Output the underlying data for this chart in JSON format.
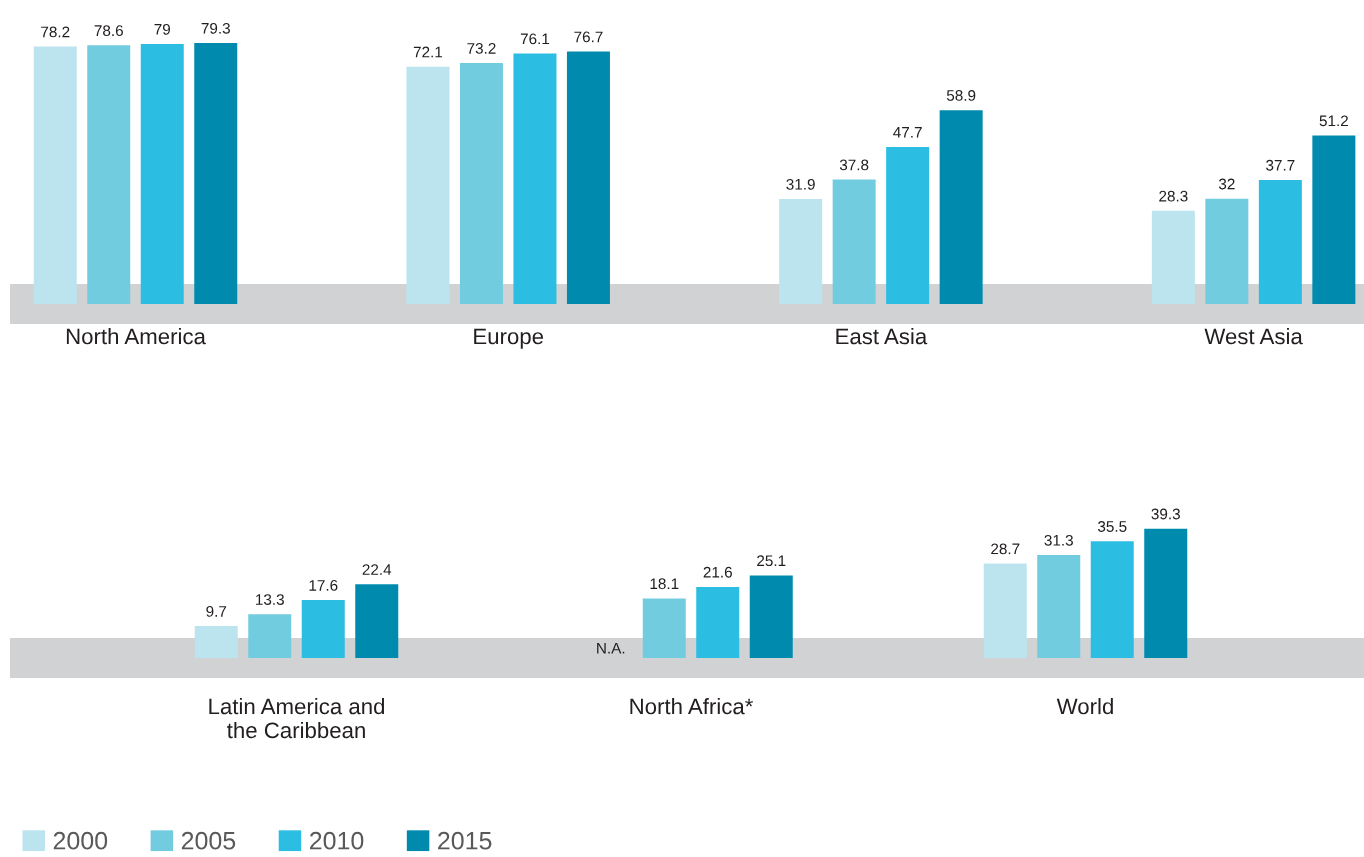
{
  "chart_data": [
    {
      "type": "bar",
      "categories": [
        "North America",
        "Europe",
        "East Asia",
        "West Asia"
      ],
      "series": [
        {
          "color": "#bbe4ee",
          "values": [
            78.2,
            72.1,
            31.9,
            28.3
          ]
        },
        {
          "color": "#72cce0",
          "values": [
            78.6,
            73.2,
            37.8,
            32
          ]
        },
        {
          "color": "#2bbde2",
          "values": [
            79,
            76.1,
            47.7,
            37.7
          ]
        },
        {
          "color": "#008bae",
          "values": [
            79.3,
            76.7,
            58.9,
            51.2
          ]
        }
      ],
      "data_labels": true,
      "tick_labels": "x"
    },
    {
      "type": "bar",
      "categories": [
        "Latin America and the Caribbean",
        "North Africa*",
        "World"
      ],
      "series": [
        {
          "name": "2000",
          "color": "#bbe4ee",
          "values": [
            9.7,
            null,
            28.7
          ],
          "value_labels": [
            "9.7",
            "N.A.",
            "28.7"
          ]
        },
        {
          "name": "2005",
          "color": "#72cce0",
          "values": [
            13.3,
            18.1,
            31.3
          ]
        },
        {
          "name": "2010",
          "color": "#2bbde2",
          "values": [
            17.6,
            21.6,
            35.5
          ]
        },
        {
          "name": "2015",
          "color": "#008bae",
          "values": [
            22.4,
            25.1,
            39.3
          ]
        }
      ],
      "data_labels": true,
      "tick_labels": "x",
      "legend": "bottom"
    }
  ]
}
